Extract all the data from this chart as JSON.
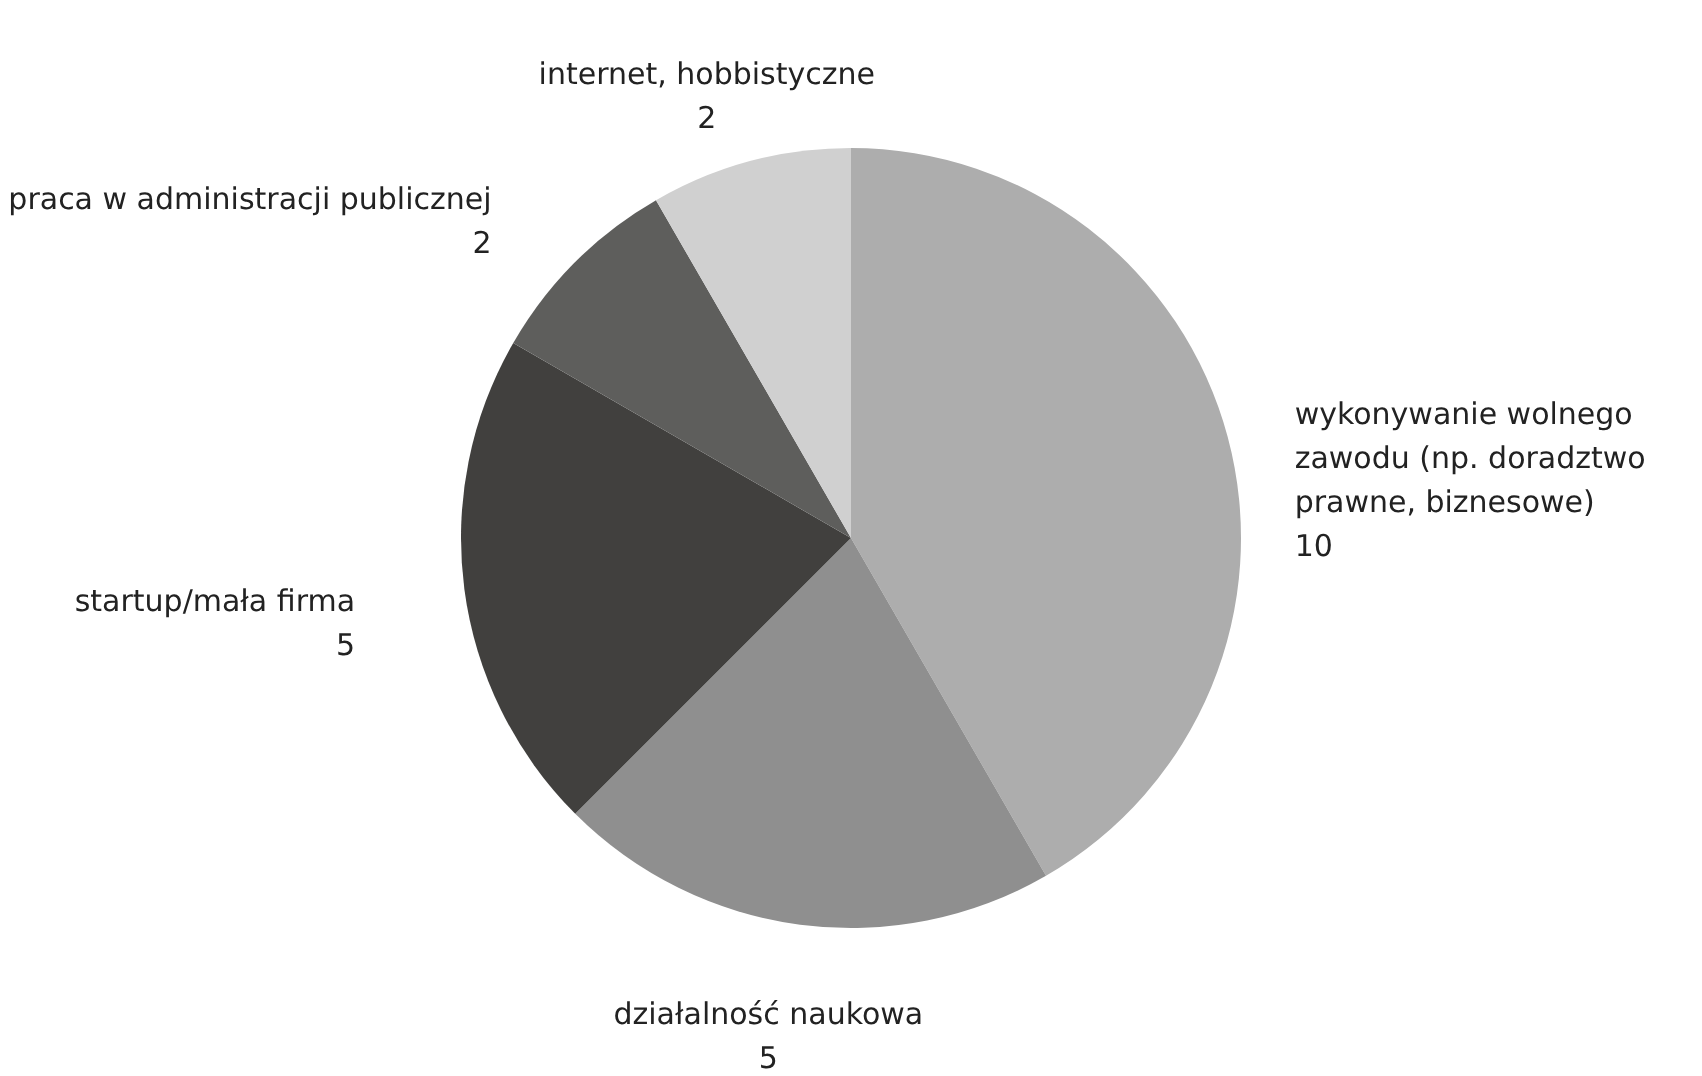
{
  "chart_data": {
    "type": "pie",
    "categories": [
      "wykonywanie wolnego zawodu (np. doradztwo prawne, biznesowe)",
      "działalność naukowa",
      "startup/mała firma",
      "praca w administracji publicznej",
      "internet, hobbistyczne"
    ],
    "values": [
      10,
      5,
      5,
      2,
      2
    ],
    "colors": [
      "#adadad",
      "#8f8f8f",
      "#41403e",
      "#5e5e5c",
      "#d0d0d0"
    ],
    "data_labels": true
  }
}
